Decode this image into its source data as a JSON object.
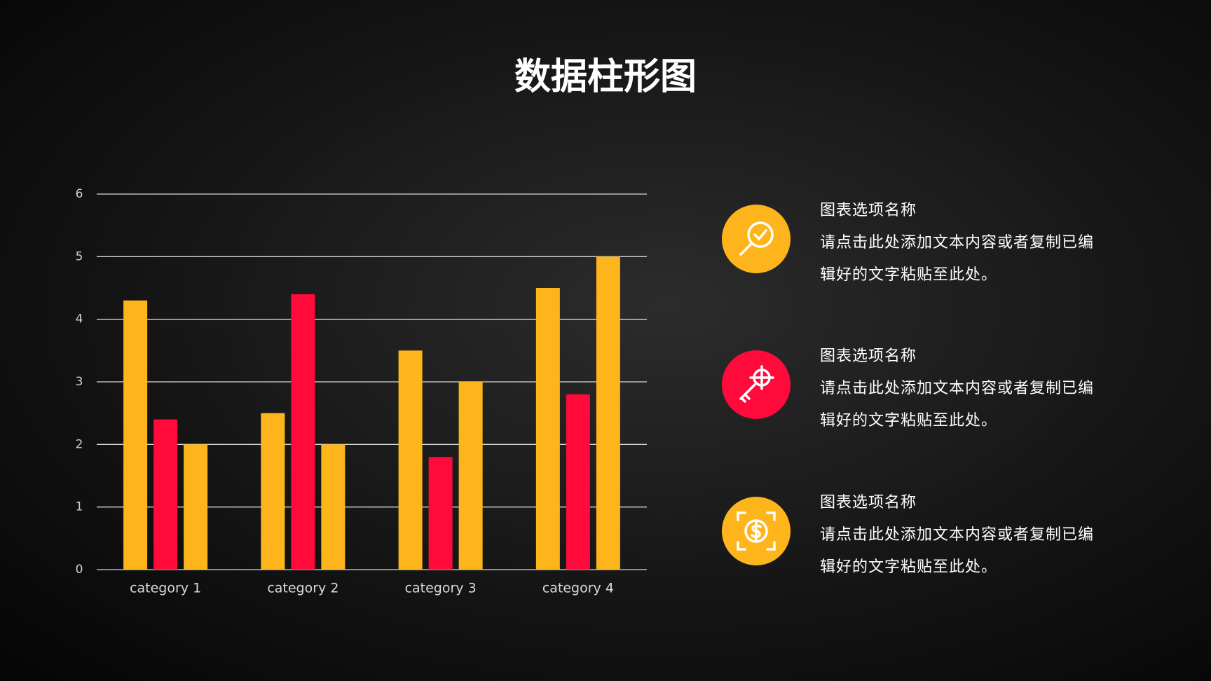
{
  "chart_data": {
    "type": "bar",
    "title": "数据柱形图",
    "categories": [
      "category 1",
      "category 2",
      "category 3",
      "category 4"
    ],
    "series": [
      {
        "color": "#fdb51b",
        "values": [
          4.3,
          2.5,
          3.5,
          4.5
        ]
      },
      {
        "color": "#ff0a3a",
        "values": [
          2.4,
          4.4,
          1.8,
          2.8
        ]
      },
      {
        "color": "#fdb51b",
        "values": [
          2,
          2,
          3,
          5
        ]
      }
    ],
    "ylim": [
      0,
      6
    ],
    "yticks": [
      0,
      1,
      2,
      3,
      4,
      5,
      6
    ],
    "grid": true
  },
  "items": [
    {
      "title": "图表选项名称",
      "text": "请点击此处添加文本内容或者复制已编辑好的文字粘贴至此处。"
    },
    {
      "title": "图表选项名称",
      "text": "请点击此处添加文本内容或者复制已编辑好的文字粘贴至此处。"
    },
    {
      "title": "图表选项名称",
      "text": "请点击此处添加文本内容或者复制已编辑好的文字粘贴至此处。"
    }
  ]
}
